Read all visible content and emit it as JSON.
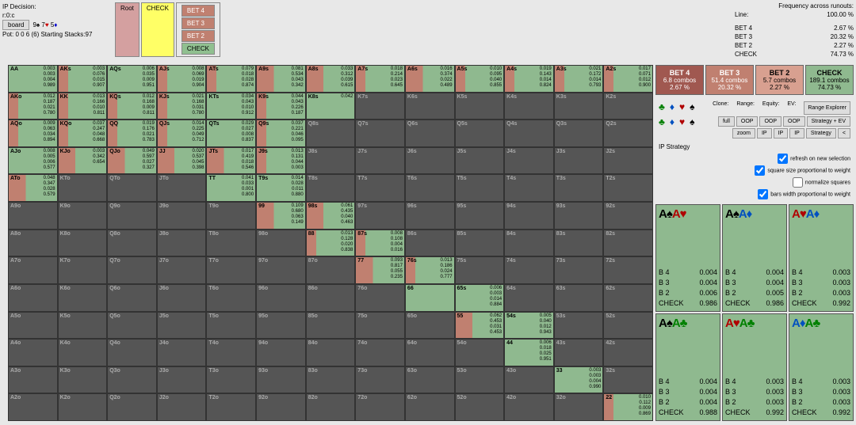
{
  "header": {
    "ip_decision": "IP Decision:",
    "node": "r:0:c",
    "board_btn": "board",
    "board_cards": "9♠ 7♥ 5♦",
    "pot": "Pot: 0 0 6 (6) Starting Stacks:97"
  },
  "breadcrumb": {
    "root": "Root",
    "check": "CHECK",
    "bet4": "BET 4",
    "bet3": "BET 3",
    "bet2": "BET 2",
    "check2": "CHECK"
  },
  "freq": {
    "title": "Frequency across runouts:",
    "line_lbl": "Line:",
    "line_val": "100.00 %",
    "rows": [
      [
        "BET 4",
        "2.67 %"
      ],
      [
        "BET 3",
        "20.32 %"
      ],
      [
        "BET 2",
        "2.27 %"
      ],
      [
        "CHECK",
        "74.73 %"
      ]
    ]
  },
  "actions": [
    {
      "name": "BET 4",
      "combos": "6.8 combos",
      "pct": "2.67 %",
      "cls": "ab-bet4"
    },
    {
      "name": "BET 3",
      "combos": "51.4 combos",
      "pct": "20.32 %",
      "cls": "ab-bet3"
    },
    {
      "name": "BET 2",
      "combos": "5.7 combos",
      "pct": "2.27 %",
      "cls": "ab-bet2"
    },
    {
      "name": "CHECK",
      "combos": "189.1 combos",
      "pct": "74.73 %",
      "cls": "ab-check"
    }
  ],
  "filters": {
    "clone": "Clone:",
    "range": "Range:",
    "equity": "Equity:",
    "ev": "EV:",
    "range_explorer": "Range Explorer",
    "btns": [
      "full",
      "OOP",
      "OOP",
      "OOP",
      "Strategy + EV",
      "zoom",
      "IP",
      "IP",
      "IP",
      "Strategy",
      "<"
    ],
    "ip_strategy": "IP Strategy",
    "opts": [
      {
        "lbl": "refresh on new selection",
        "ck": true
      },
      {
        "lbl": "square size proportional to weight",
        "ck": true
      },
      {
        "lbl": "normalize squares",
        "ck": false
      },
      {
        "lbl": "bars width proportional to weight",
        "ck": true
      }
    ]
  },
  "ranks": [
    "A",
    "K",
    "Q",
    "J",
    "T",
    "9",
    "8",
    "7",
    "6",
    "5",
    "4",
    "3",
    "2"
  ],
  "cell_data": {
    "0_0": {
      "v": [
        "0.003",
        "0.003",
        "0.004",
        "0.989"
      ],
      "s": "full"
    },
    "0_1": {
      "v": [
        "0.003",
        "0.076",
        "0.015",
        "0.907"
      ],
      "s": "mix"
    },
    "0_2": {
      "v": [
        "0.006",
        "0.035",
        "0.009",
        "0.951"
      ],
      "s": "full"
    },
    "0_3": {
      "v": [
        "0.008",
        "0.069",
        "0.019",
        "0.904"
      ],
      "s": "mix"
    },
    "0_4": {
      "v": [
        "0.079",
        "0.018",
        "0.028",
        "0.874"
      ],
      "s": "mix"
    },
    "0_5": {
      "v": [
        "0.081",
        "0.534",
        "0.043",
        "0.342"
      ],
      "s": "mix2"
    },
    "0_6": {
      "v": [
        "0.033",
        "0.312",
        "0.039",
        "0.615"
      ],
      "s": "mix2"
    },
    "0_7": {
      "v": [
        "0.018",
        "0.214",
        "0.023",
        "0.645"
      ],
      "s": "mix"
    },
    "0_8": {
      "v": [
        "0.016",
        "0.374",
        "0.022",
        "0.489"
      ],
      "s": "mix2"
    },
    "0_9": {
      "v": [
        "0.010",
        "0.095",
        "0.040",
        "0.855"
      ],
      "s": "mix"
    },
    "0_10": {
      "v": [
        "0.019",
        "0.143",
        "0.014",
        "0.824"
      ],
      "s": "mix"
    },
    "0_11": {
      "v": [
        "0.021",
        "0.172",
        "0.014",
        "0.793"
      ],
      "s": "mix"
    },
    "0_12": {
      "v": [
        "0.017",
        "0.071",
        "0.012",
        "0.900"
      ],
      "s": "mix"
    },
    "1_0": {
      "v": [
        "0.012",
        "0.187",
        "0.021",
        "0.780"
      ],
      "s": "mix"
    },
    "1_1": {
      "v": [
        "0.013",
        "0.166",
        "0.010",
        "0.811"
      ],
      "s": "mix"
    },
    "1_2": {
      "v": [
        "0.012",
        "0.168",
        "0.009",
        "0.811"
      ],
      "s": "mix"
    },
    "1_3": {
      "v": [
        "0.021",
        "0.168",
        "0.031",
        "0.780"
      ],
      "s": "mix"
    },
    "1_4": {
      "v": [
        "0.034",
        "0.043",
        "0.010",
        "0.912"
      ],
      "s": "full"
    },
    "1_5": {
      "v": [
        "0.044",
        "0.043",
        "0.226",
        "0.187"
      ],
      "s": "mix"
    },
    "1_6": {
      "v": [
        "0.042",
        "",
        "",
        ""
      ],
      "s": "full"
    },
    "2_0": {
      "v": [
        "0.009",
        "0.063",
        "0.034",
        "0.894"
      ],
      "s": "mix"
    },
    "2_1": {
      "v": [
        "0.037",
        "0.247",
        "0.048",
        "0.668"
      ],
      "s": "mix"
    },
    "2_2": {
      "v": [
        "0.019",
        "0.176",
        "0.021",
        "0.783"
      ],
      "s": "mix"
    },
    "2_3": {
      "v": [
        "0.014",
        "0.225",
        "0.049",
        "0.712"
      ],
      "s": "mix"
    },
    "2_4": {
      "v": [
        "0.029",
        "0.027",
        "0.008",
        "0.837"
      ],
      "s": "full"
    },
    "2_5": {
      "v": [
        "0.037",
        "0.221",
        "0.046",
        "0.095"
      ],
      "s": "mix"
    },
    "3_0": {
      "v": [
        "0.008",
        "0.005",
        "0.006",
        "0.577"
      ],
      "s": "full"
    },
    "3_1": {
      "v": [
        "0.003",
        "0.342",
        "",
        "0.654"
      ],
      "s": "mix2"
    },
    "3_2": {
      "v": [
        "0.049",
        "0.597",
        "0.027",
        "0.327"
      ],
      "s": "mix2"
    },
    "3_3": {
      "v": [
        "0.020",
        "0.537",
        "0.045",
        "0.398"
      ],
      "s": "mix2"
    },
    "3_4": {
      "v": [
        "0.017",
        "0.419",
        "0.018",
        "0.546"
      ],
      "s": "mix2"
    },
    "3_5": {
      "v": [
        "0.013",
        "0.131",
        "0.044",
        "0.003"
      ],
      "s": "mix"
    },
    "4_0": {
      "v": [
        "0.048",
        "0.347",
        "0.028",
        "0.579"
      ],
      "s": "mix2"
    },
    "4_4": {
      "v": [
        "0.041",
        "0.033",
        "0.001",
        "0.800"
      ],
      "s": "full"
    },
    "4_5": {
      "v": [
        "0.014",
        "0.028",
        "0.011",
        "0.880"
      ],
      "s": "full"
    },
    "5_5": {
      "v": [
        "0.109",
        "0.680",
        "0.063",
        "0.149"
      ],
      "s": "mix2"
    },
    "5_6": {
      "v": [
        "0.061",
        "0.435",
        "0.040",
        "0.463"
      ],
      "s": "mix2"
    },
    "6_6": {
      "v": [
        "0.013",
        "0.128",
        "0.020",
        "0.838"
      ],
      "s": "mix"
    },
    "6_7": {
      "v": [
        "0.008",
        "0.108",
        "0.004",
        "0.016"
      ],
      "s": "mix"
    },
    "7_7": {
      "v": [
        "0.093",
        "0.817",
        "0.055",
        "0.235"
      ],
      "s": "mix2"
    },
    "7_8": {
      "v": [
        "0.013",
        "0.186",
        "0.024",
        "0.777"
      ],
      "s": "mix"
    },
    "8_8": {
      "v": [
        "",
        "",
        "",
        ""
      ],
      "s": "full"
    },
    "8_9": {
      "v": [
        "0.006",
        "0.003",
        "0.014",
        "0.884"
      ],
      "s": "full"
    },
    "9_9": {
      "v": [
        "0.062",
        "0.453",
        "0.031",
        "0.453"
      ],
      "s": "mix2"
    },
    "9_10": {
      "v": [
        "0.005",
        "0.040",
        "0.012",
        "0.943"
      ],
      "s": "full"
    },
    "10_10": {
      "v": [
        "0.006",
        "0.018",
        "0.025",
        "0.951"
      ],
      "s": "full"
    },
    "11_11": {
      "v": [
        "0.003",
        "0.003",
        "0.004",
        "0.990"
      ],
      "s": "full"
    },
    "12_12": {
      "v": [
        "0.010",
        "0.112",
        "0.009",
        "0.869"
      ],
      "s": "mix"
    }
  },
  "combos": [
    {
      "cards": [
        [
          "A",
          "s-spade",
          "♠"
        ],
        [
          "A",
          "s-heart",
          "♥"
        ]
      ],
      "lines": [
        [
          "B 4",
          "0.004"
        ],
        [
          "B 3",
          "0.004"
        ],
        [
          "B 2",
          "0.006"
        ],
        [
          "CHECK",
          "0.986"
        ]
      ]
    },
    {
      "cards": [
        [
          "A",
          "s-spade",
          "♠"
        ],
        [
          "A",
          "s-diamond",
          "♦"
        ]
      ],
      "lines": [
        [
          "B 4",
          "0.004"
        ],
        [
          "B 3",
          "0.004"
        ],
        [
          "B 2",
          "0.005"
        ],
        [
          "CHECK",
          "0.986"
        ]
      ]
    },
    {
      "cards": [
        [
          "A",
          "s-heart",
          "♥"
        ],
        [
          "A",
          "s-diamond",
          "♦"
        ]
      ],
      "lines": [
        [
          "B 4",
          "0.003"
        ],
        [
          "B 3",
          "0.003"
        ],
        [
          "B 2",
          "0.003"
        ],
        [
          "CHECK",
          "0.992"
        ]
      ]
    },
    {
      "cards": [
        [
          "A",
          "s-spade",
          "♠"
        ],
        [
          "A",
          "s-club",
          "♣"
        ]
      ],
      "lines": [
        [
          "B 4",
          "0.004"
        ],
        [
          "B 3",
          "0.004"
        ],
        [
          "B 2",
          "0.004"
        ],
        [
          "CHECK",
          "0.988"
        ]
      ]
    },
    {
      "cards": [
        [
          "A",
          "s-heart",
          "♥"
        ],
        [
          "A",
          "s-club",
          "♣"
        ]
      ],
      "lines": [
        [
          "B 4",
          "0.003"
        ],
        [
          "B 3",
          "0.003"
        ],
        [
          "B 2",
          "0.003"
        ],
        [
          "CHECK",
          "0.992"
        ]
      ]
    },
    {
      "cards": [
        [
          "A",
          "s-diamond",
          "♦"
        ],
        [
          "A",
          "s-club",
          "♣"
        ]
      ],
      "lines": [
        [
          "B 4",
          "0.003"
        ],
        [
          "B 3",
          "0.003"
        ],
        [
          "B 2",
          "0.003"
        ],
        [
          "CHECK",
          "0.992"
        ]
      ]
    }
  ]
}
